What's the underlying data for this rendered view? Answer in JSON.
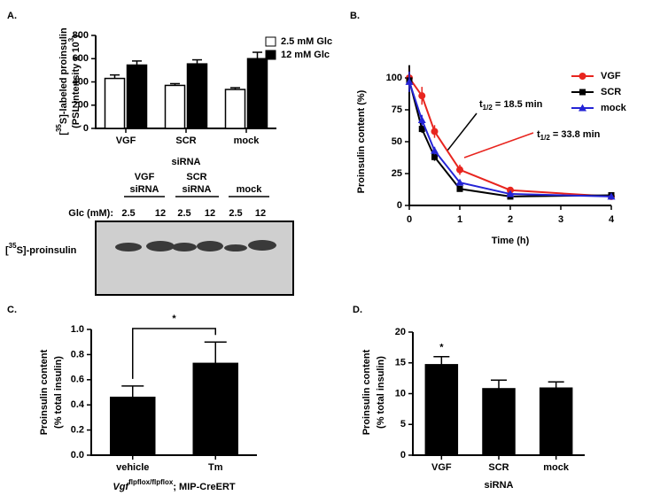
{
  "chart_data": [
    {
      "type": "bar",
      "panel": "A.",
      "ylabel": [
        [
          "[",
          "35",
          "S]-labeled proinsulin"
        ],
        [
          "(PSL intensity x 10",
          "3",
          ")"
        ]
      ],
      "xlabel": "siRNA",
      "categories": [
        "VGF",
        "SCR",
        "mock"
      ],
      "series": [
        {
          "name": "2.5 mM Glc",
          "color": "#ffffff",
          "values": [
            430,
            370,
            335
          ],
          "errors": [
            30,
            15,
            15
          ]
        },
        {
          "name": "12 mM Glc",
          "color": "#000000",
          "values": [
            545,
            555,
            600
          ],
          "errors": [
            35,
            35,
            55
          ]
        }
      ],
      "ylim": [
        0,
        800
      ],
      "yticks": [
        0,
        200,
        400,
        600,
        800
      ]
    },
    {
      "type": "line",
      "panel": "B.",
      "ylabel": "Proinsulin content (%)",
      "xlabel": "Time (h)",
      "x": [
        0,
        0.25,
        0.5,
        1,
        2,
        4
      ],
      "series": [
        {
          "name": "VGF",
          "color": "#e8251f",
          "marker": "circle",
          "values": [
            100,
            86,
            58,
            28,
            12,
            7
          ],
          "errors": [
            8,
            7,
            5,
            4,
            2,
            1
          ]
        },
        {
          "name": "SCR",
          "color": "#000000",
          "marker": "square",
          "values": [
            98,
            60,
            38,
            13,
            7,
            8
          ],
          "errors": [
            10,
            3,
            3,
            2,
            1,
            1
          ]
        },
        {
          "name": "mock",
          "color": "#2424d6",
          "marker": "triangle",
          "values": [
            97,
            67,
            43,
            18,
            9,
            7
          ],
          "errors": [
            8,
            4,
            3,
            2,
            1,
            1
          ]
        }
      ],
      "annotations": [
        [
          "t",
          "1/2",
          " = 18.5 min"
        ],
        [
          "t",
          "1/2",
          " = 33.8 min"
        ]
      ],
      "xlim": [
        0,
        4
      ],
      "xticks": [
        0,
        1,
        2,
        3,
        4
      ],
      "ylim": [
        0,
        110
      ],
      "yticks": [
        0,
        25,
        50,
        75,
        100
      ]
    },
    {
      "type": "bar",
      "panel": "C.",
      "ylabel": [
        [
          "Proinsulin content"
        ],
        [
          "(% total insulin)"
        ]
      ],
      "xlabel": [
        "Vgf",
        "flpflox/flpflox",
        "; MIP-CreERT"
      ],
      "categories": [
        "vehicle",
        "Tm"
      ],
      "values": [
        0.46,
        0.73
      ],
      "errors": [
        0.09,
        0.17
      ],
      "color": "#000000",
      "significance": "*",
      "ylim": [
        0,
        1.0
      ],
      "yticks": [
        {
          "value": 0,
          "label": "0.0"
        },
        0.2,
        0.4,
        0.6,
        0.8,
        {
          "value": 1,
          "label": "1.0"
        }
      ]
    },
    {
      "type": "bar",
      "panel": "D.",
      "ylabel": [
        [
          "Proinsulin content"
        ],
        [
          "(% total insulin)"
        ]
      ],
      "xlabel": "siRNA",
      "categories": [
        "VGF",
        "SCR",
        "mock"
      ],
      "values": [
        14.7,
        10.8,
        10.9
      ],
      "errors": [
        1.3,
        1.4,
        1.0
      ],
      "color": "#000000",
      "significance": "*",
      "ylim": [
        0,
        20
      ],
      "yticks": [
        0,
        5,
        10,
        15,
        20
      ]
    }
  ],
  "blot": {
    "groups": [
      [
        "VGF",
        "siRNA"
      ],
      [
        "SCR",
        "siRNA"
      ],
      [
        "mock"
      ]
    ],
    "glc_label": "Glc (mM):",
    "lanes": [
      "2.5",
      "12",
      "2.5",
      "12",
      "2.5",
      "12"
    ],
    "band_label": [
      "[",
      "35",
      "S]-proinsulin"
    ]
  }
}
